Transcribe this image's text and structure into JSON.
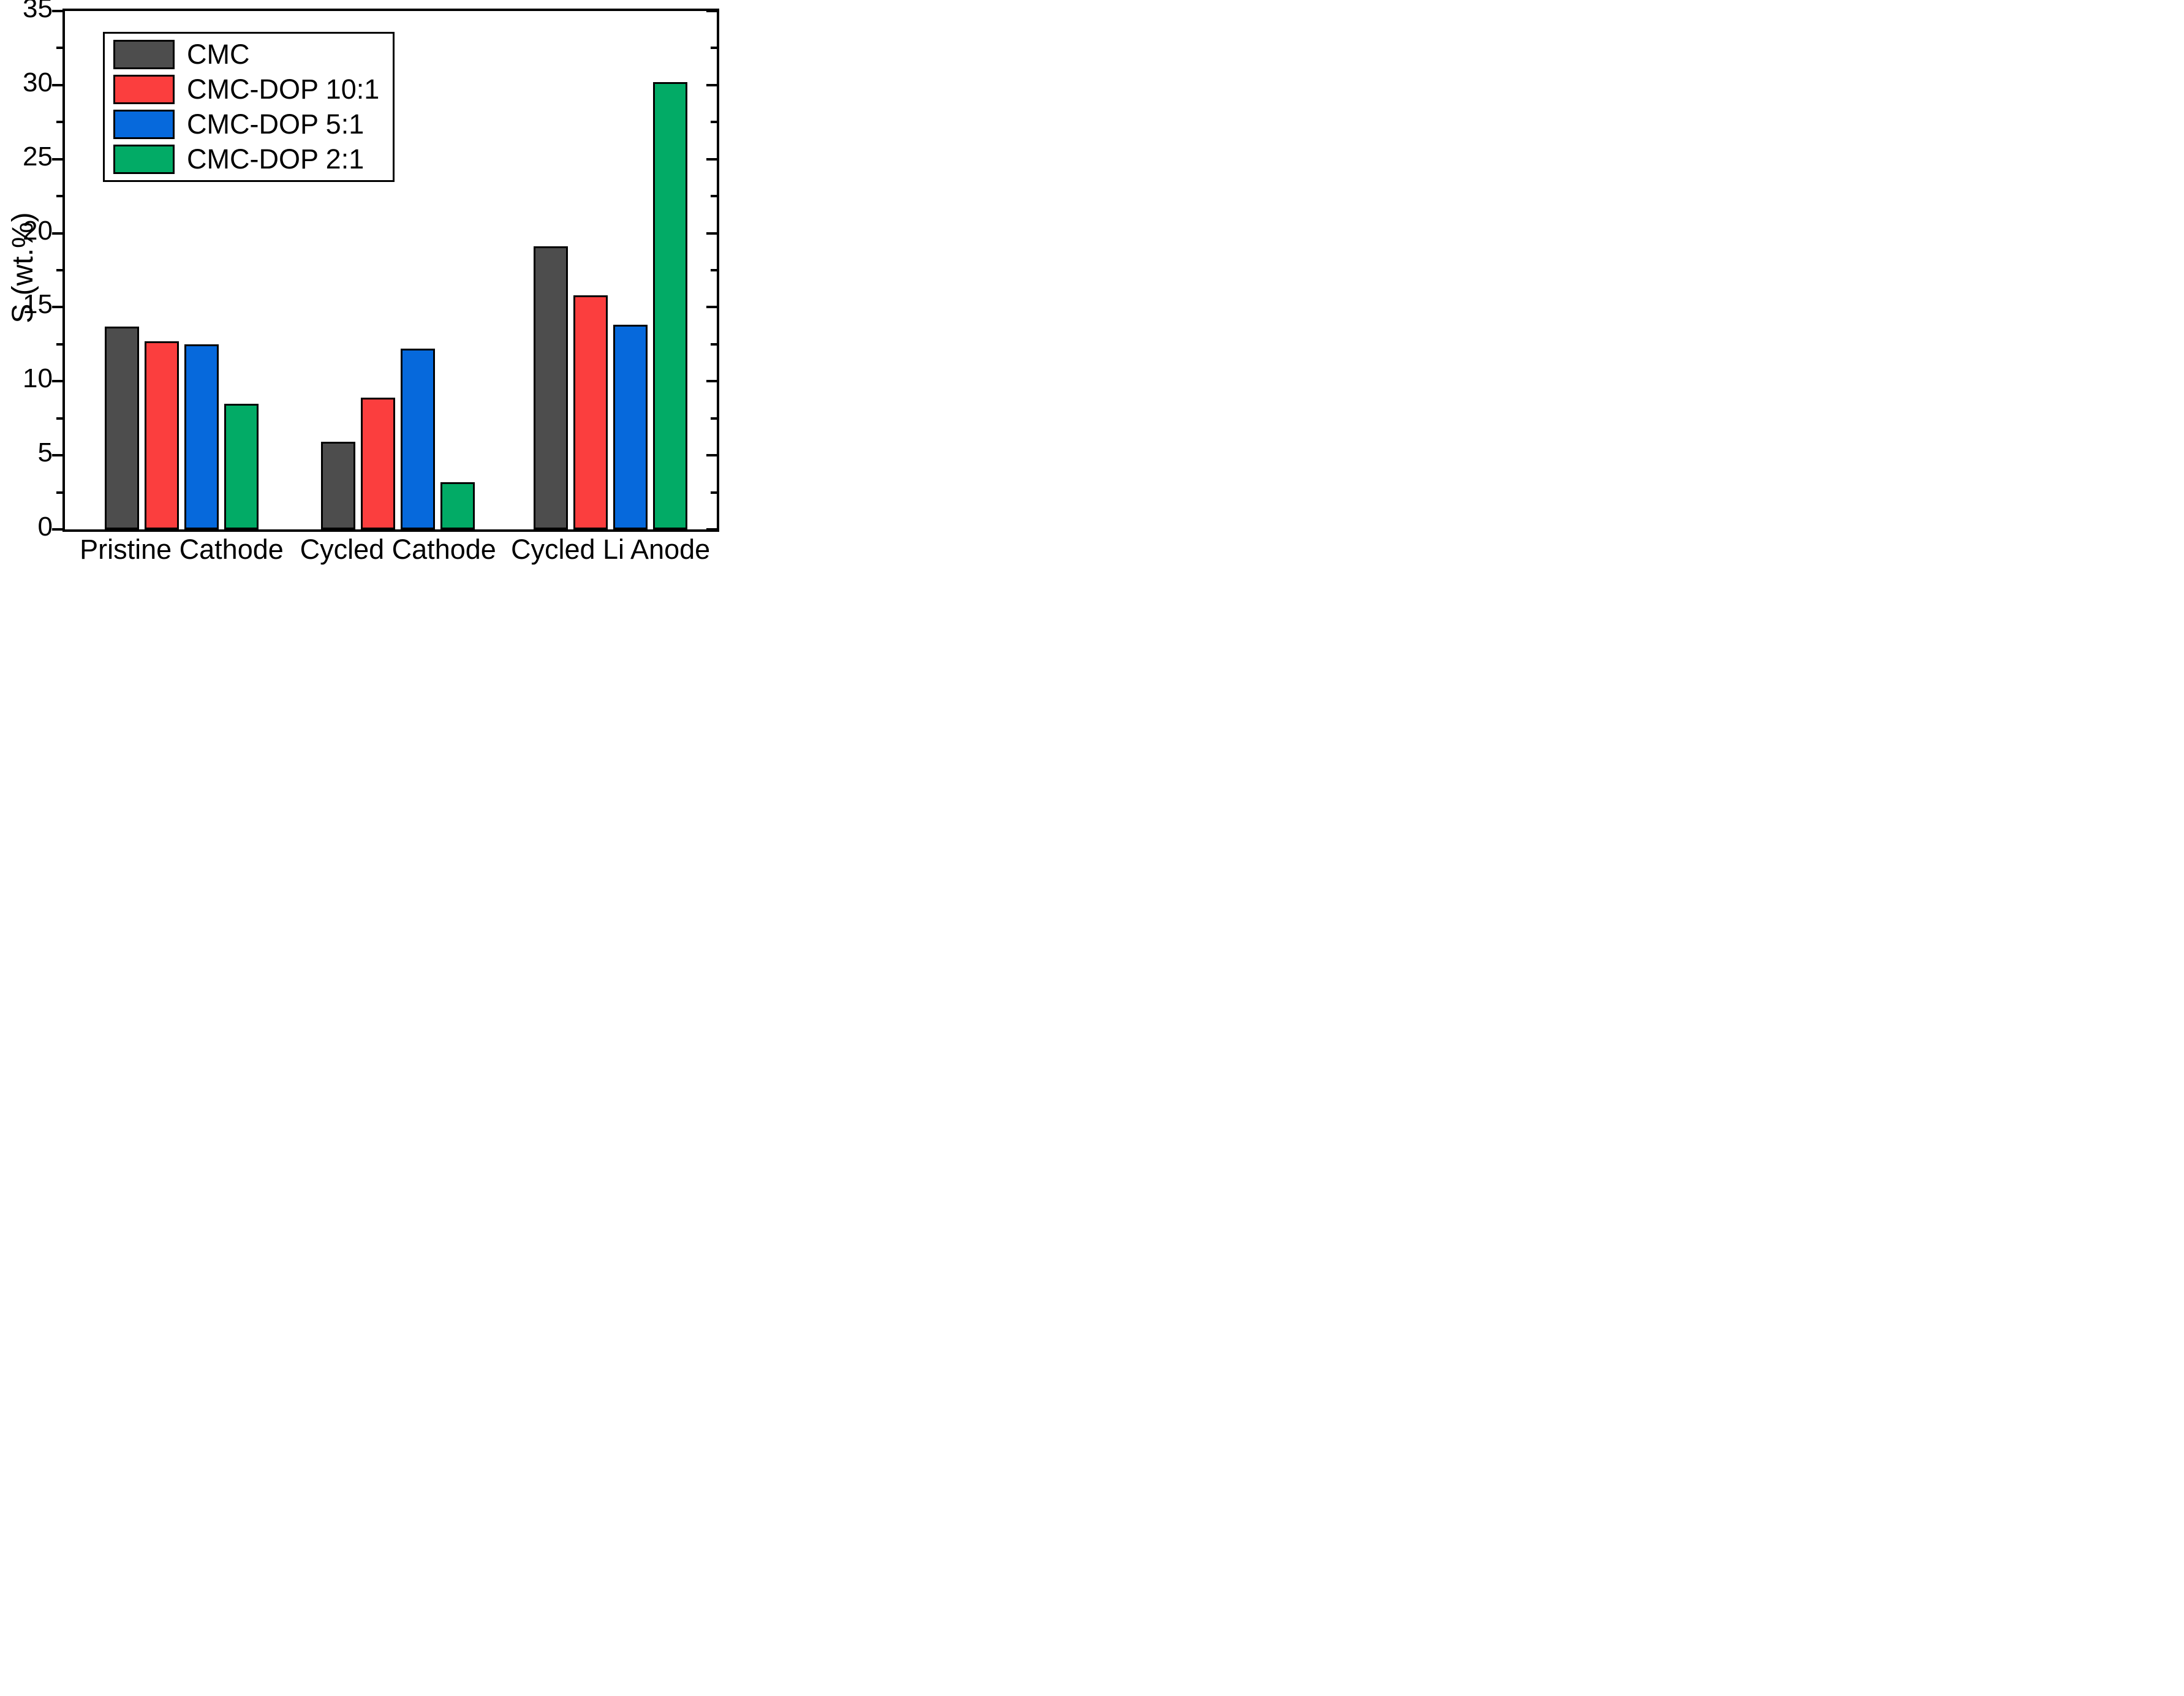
{
  "figure": {
    "y_axis": {
      "title": "S (wt.%)",
      "min": 0,
      "max": 35,
      "major_tick_step": 5,
      "minor_tick_step": 2.5,
      "tick_labels": [
        "0",
        "5",
        "10",
        "15",
        "20",
        "25",
        "30",
        "35"
      ]
    },
    "x_axis": {
      "categories": [
        "Pristine Cathode",
        "Cycled Cathode",
        "Cycled Li Anode"
      ]
    },
    "legend": {
      "items": [
        "CMC",
        "CMC-DOP 10:1",
        "CMC-DOP 5:1",
        "CMC-DOP 2:1"
      ]
    }
  },
  "chart_data": {
    "type": "bar",
    "categories": [
      "Pristine Cathode",
      "Cycled Cathode",
      "Cycled Li Anode"
    ],
    "series": [
      {
        "name": "CMC",
        "color": "#4D4D4D",
        "values": [
          13.7,
          5.9,
          19.1
        ]
      },
      {
        "name": "CMC-DOP 10:1",
        "color": "#FB3E3E",
        "values": [
          12.7,
          8.9,
          15.8
        ]
      },
      {
        "name": "CMC-DOP 5:1",
        "color": "#0669DC",
        "values": [
          12.5,
          12.2,
          13.8
        ]
      },
      {
        "name": "CMC-DOP 2:1",
        "color": "#02AB66",
        "values": [
          8.5,
          3.2,
          30.2
        ]
      }
    ],
    "title": "",
    "xlabel": "",
    "ylabel": "S (wt.%)",
    "ylim": [
      0,
      35
    ],
    "grid": false,
    "legend_position": "upper-left"
  }
}
